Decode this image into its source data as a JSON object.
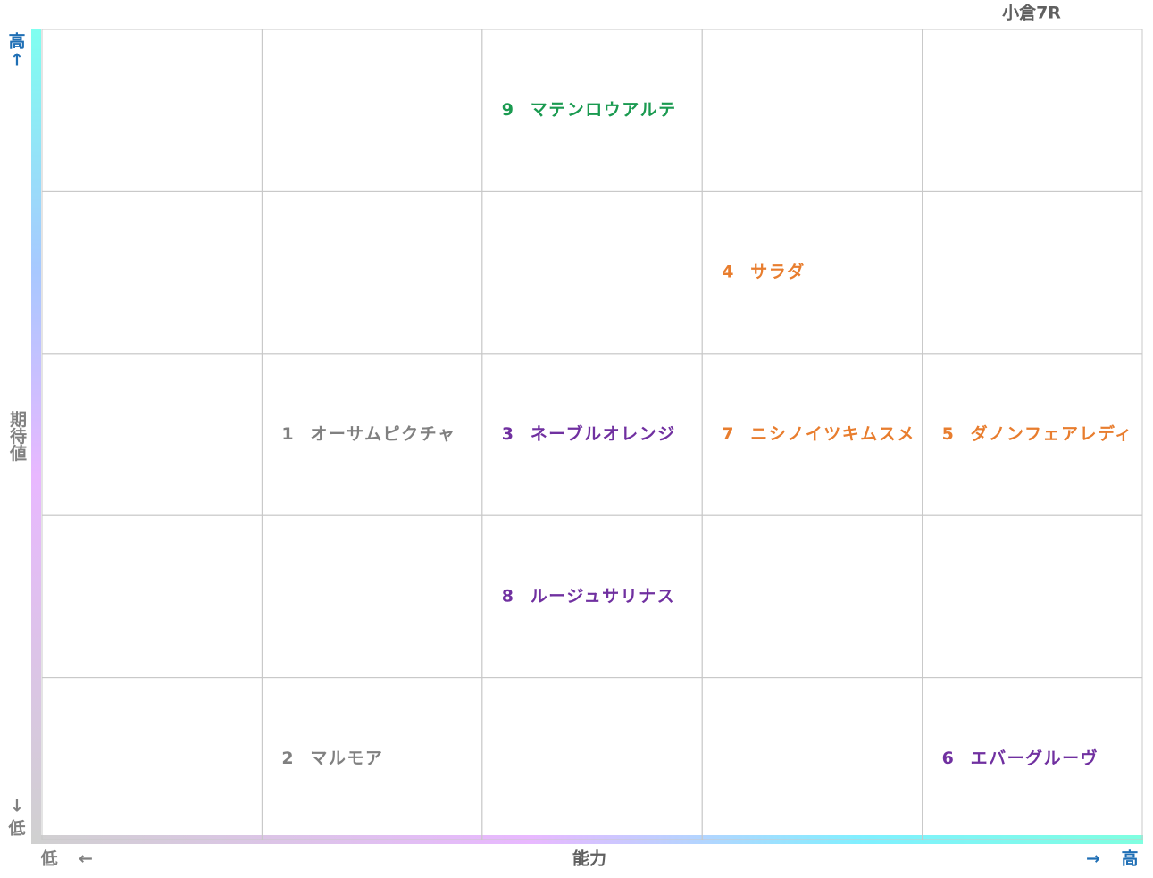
{
  "title": "小倉7R",
  "y_axis": {
    "label": "期待値",
    "high": "高",
    "high_arrow": "↑",
    "low_arrow": "↓",
    "low": "低"
  },
  "x_axis": {
    "label": "能力",
    "low": "低",
    "low_arrow": "←",
    "high_arrow": "→",
    "high": "高"
  },
  "grid": {
    "rows": [
      [
        null,
        null,
        {
          "number": 9,
          "name": "マテンロウアルテ",
          "color": "#1a9a50"
        },
        null,
        null
      ],
      [
        null,
        null,
        null,
        {
          "number": 4,
          "name": "サラダ",
          "color": "#e87d2e"
        },
        null
      ],
      [
        null,
        {
          "number": 1,
          "name": "オーサムピクチャ",
          "color": "#808080"
        },
        {
          "number": 3,
          "name": "ネーブルオレンジ",
          "color": "#7030a0"
        },
        {
          "number": 7,
          "name": "ニシノイツキムスメ",
          "color": "#e87d2e"
        },
        {
          "number": 5,
          "name": "ダノンフェアレディ",
          "color": "#e87d2e"
        }
      ],
      [
        null,
        null,
        {
          "number": 8,
          "name": "ルージュサリナス",
          "color": "#7030a0"
        },
        null,
        null
      ],
      [
        null,
        {
          "number": 2,
          "name": "マルモア",
          "color": "#808080"
        },
        null,
        null,
        {
          "number": 6,
          "name": "エバーグルーヴ",
          "color": "#7030a0"
        }
      ]
    ]
  }
}
